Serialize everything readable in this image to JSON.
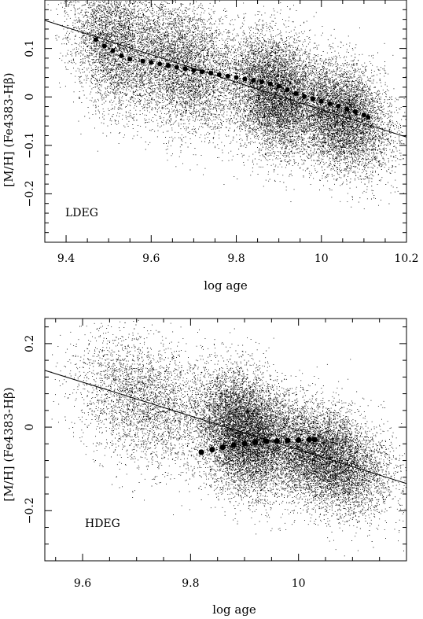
{
  "chart_data": [
    {
      "type": "scatter",
      "panel_label": "LDEG",
      "xlabel": "log age",
      "ylabel": "[M/H] (Fe4383-Hβ)",
      "xlim": [
        9.35,
        10.2
      ],
      "ylim": [
        -0.3,
        0.2
      ],
      "x_ticks": [
        "9.4",
        "9.6",
        "9.8",
        "10",
        "10.2"
      ],
      "x_tick_values": [
        9.4,
        9.6,
        9.8,
        10.0,
        10.2
      ],
      "y_ticks": [
        "−0.2",
        "−0.1",
        "0",
        "0.1"
      ],
      "y_tick_values": [
        -0.2,
        -0.1,
        0.0,
        0.1
      ],
      "grid": false,
      "series": [
        {
          "kind": "scatter-cloud",
          "color": "#000000",
          "clusters": [
            {
              "x": [
                9.42,
                9.6
              ],
              "y_offset_sd": 0.07,
              "weight": 0.18
            },
            {
              "x": [
                9.55,
                9.8
              ],
              "y_offset_sd": 0.065,
              "weight": 0.24
            },
            {
              "x": [
                9.8,
                9.98
              ],
              "y_offset_sd": 0.06,
              "weight": 0.3
            },
            {
              "x": [
                9.95,
                10.15
              ],
              "y_offset_sd": 0.055,
              "weight": 0.28
            }
          ]
        },
        {
          "kind": "fit-line",
          "color": "#000000",
          "x": [
            9.35,
            10.2
          ],
          "y": [
            0.158,
            -0.083
          ]
        },
        {
          "kind": "binned-median",
          "color": "#000000",
          "x": [
            9.47,
            9.49,
            9.51,
            9.53,
            9.55,
            9.58,
            9.6,
            9.62,
            9.64,
            9.66,
            9.68,
            9.7,
            9.72,
            9.74,
            9.76,
            9.78,
            9.8,
            9.82,
            9.84,
            9.86,
            9.88,
            9.9,
            9.92,
            9.94,
            9.96,
            9.98,
            10.0,
            10.02,
            10.04,
            10.06,
            10.08,
            10.1,
            10.11
          ],
          "y": [
            0.118,
            0.105,
            0.095,
            0.085,
            0.078,
            0.074,
            0.071,
            0.068,
            0.065,
            0.061,
            0.058,
            0.055,
            0.052,
            0.049,
            0.046,
            0.043,
            0.04,
            0.037,
            0.034,
            0.031,
            0.027,
            0.022,
            0.015,
            0.007,
            0.001,
            -0.004,
            -0.009,
            -0.014,
            -0.019,
            -0.025,
            -0.031,
            -0.037,
            -0.042
          ]
        }
      ]
    },
    {
      "type": "scatter",
      "panel_label": "HDEG",
      "xlabel": "log age",
      "ylabel": "[M/H] (Fe4383-Hβ)",
      "xlim": [
        9.53,
        10.2
      ],
      "ylim": [
        -0.32,
        0.26
      ],
      "x_ticks": [
        "9.6",
        "9.8",
        "10"
      ],
      "x_tick_values": [
        9.6,
        9.8,
        10.0
      ],
      "y_ticks": [
        "0.2",
        "0",
        "−0.2"
      ],
      "y_tick_values": [
        0.2,
        0.0,
        -0.2
      ],
      "grid": false,
      "series": [
        {
          "kind": "scatter-cloud",
          "color": "#000000",
          "clusters": [
            {
              "x": [
                9.6,
                9.82
              ],
              "y_offset_sd": 0.075,
              "weight": 0.16
            },
            {
              "x": [
                9.82,
                9.98
              ],
              "y_offset_sd": 0.07,
              "weight": 0.44
            },
            {
              "x": [
                9.95,
                10.15
              ],
              "y_offset_sd": 0.06,
              "weight": 0.4
            }
          ]
        },
        {
          "kind": "fit-line",
          "color": "#000000",
          "x": [
            9.53,
            10.2
          ],
          "y": [
            0.136,
            -0.135
          ]
        },
        {
          "kind": "binned-median",
          "color": "#000000",
          "x": [
            9.82,
            9.84,
            9.86,
            9.88,
            9.9,
            9.92,
            9.94,
            9.96,
            9.98,
            10.0,
            10.02,
            10.03
          ],
          "y": [
            -0.06,
            -0.054,
            -0.048,
            -0.043,
            -0.039,
            -0.036,
            -0.034,
            -0.033,
            -0.032,
            -0.031,
            -0.03,
            -0.03
          ]
        }
      ]
    }
  ]
}
